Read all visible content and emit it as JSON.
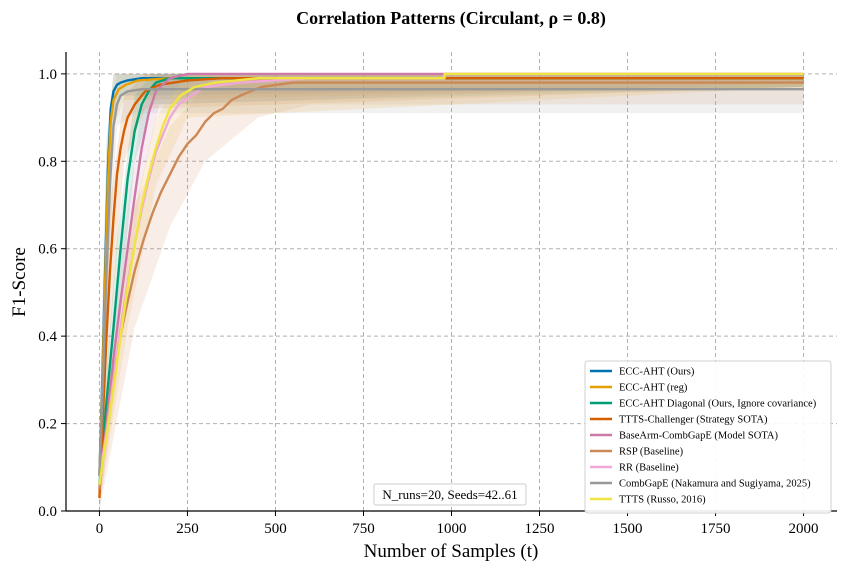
{
  "chart_data": {
    "type": "line",
    "title": "Correlation Patterns (Circulant, ρ = 0.8)",
    "xlabel": "Number of Samples (t)",
    "ylabel": "F1-Score",
    "xlim": [
      -95,
      2095
    ],
    "ylim": [
      0.0,
      1.05
    ],
    "xticks": [
      0,
      250,
      500,
      750,
      1000,
      1250,
      1500,
      1750,
      2000
    ],
    "xtick_labels": [
      "0",
      "250",
      "500",
      "750",
      "1000",
      "1250",
      "1500",
      "1750",
      "2000"
    ],
    "yticks": [
      0.0,
      0.2,
      0.4,
      0.6,
      0.8,
      1.0
    ],
    "ytick_labels": [
      "0.0",
      "0.2",
      "0.4",
      "0.6",
      "0.8",
      "1.0"
    ],
    "grid": true,
    "legend_position": "lower-right",
    "annotation": "N_runs=20, Seeds=42..61",
    "series": [
      {
        "name": "ECC-AHT (Ours)",
        "color": "#0072B2",
        "points": [
          [
            0,
            0.08
          ],
          [
            8,
            0.3
          ],
          [
            16,
            0.55
          ],
          [
            24,
            0.78
          ],
          [
            32,
            0.92
          ],
          [
            40,
            0.96
          ],
          [
            50,
            0.975
          ],
          [
            60,
            0.98
          ],
          [
            80,
            0.985
          ],
          [
            120,
            0.99
          ],
          [
            2000,
            0.99
          ]
        ],
        "band": [
          [
            0,
            0.02,
            0.16
          ],
          [
            20,
            0.45,
            0.85
          ],
          [
            40,
            0.9,
            1.0
          ],
          [
            60,
            0.95,
            1.0
          ],
          [
            2000,
            0.97,
            1.0
          ]
        ]
      },
      {
        "name": "ECC-AHT (reg)",
        "color": "#E69F00",
        "points": [
          [
            0,
            0.08
          ],
          [
            8,
            0.28
          ],
          [
            16,
            0.52
          ],
          [
            24,
            0.75
          ],
          [
            32,
            0.89
          ],
          [
            40,
            0.94
          ],
          [
            55,
            0.965
          ],
          [
            75,
            0.975
          ],
          [
            110,
            0.985
          ],
          [
            200,
            0.99
          ],
          [
            2000,
            0.99
          ]
        ],
        "band": [
          [
            0,
            0.02,
            0.16
          ],
          [
            20,
            0.4,
            0.82
          ],
          [
            40,
            0.88,
            1.0
          ],
          [
            70,
            0.94,
            1.0
          ],
          [
            2000,
            0.97,
            1.0
          ]
        ]
      },
      {
        "name": "ECC-AHT Diagonal (Ours, Ignore covariance)",
        "color": "#009E73",
        "points": [
          [
            0,
            0.06
          ],
          [
            20,
            0.25
          ],
          [
            40,
            0.42
          ],
          [
            60,
            0.6
          ],
          [
            80,
            0.76
          ],
          [
            100,
            0.87
          ],
          [
            120,
            0.93
          ],
          [
            140,
            0.96
          ],
          [
            160,
            0.98
          ],
          [
            200,
            0.99
          ],
          [
            2000,
            0.99
          ]
        ],
        "band": [
          [
            0,
            0.02,
            0.12
          ],
          [
            50,
            0.4,
            0.62
          ],
          [
            100,
            0.8,
            0.95
          ],
          [
            150,
            0.93,
            1.0
          ],
          [
            2000,
            0.97,
            1.0
          ]
        ]
      },
      {
        "name": "TTTS-Challenger (Strategy SOTA)",
        "color": "#D55E00",
        "points": [
          [
            0,
            0.03
          ],
          [
            10,
            0.22
          ],
          [
            20,
            0.4
          ],
          [
            30,
            0.55
          ],
          [
            40,
            0.67
          ],
          [
            50,
            0.77
          ],
          [
            60,
            0.83
          ],
          [
            70,
            0.87
          ],
          [
            80,
            0.9
          ],
          [
            100,
            0.93
          ],
          [
            130,
            0.96
          ],
          [
            170,
            0.975
          ],
          [
            250,
            0.985
          ],
          [
            350,
            0.99
          ],
          [
            2000,
            0.99
          ]
        ],
        "band": [
          [
            0,
            0.0,
            0.1
          ],
          [
            30,
            0.4,
            0.7
          ],
          [
            70,
            0.8,
            0.95
          ],
          [
            130,
            0.92,
            1.0
          ],
          [
            2000,
            0.97,
            1.0
          ]
        ]
      },
      {
        "name": "BaseArm-CombGapE (Model SOTA)",
        "color": "#CC79A7",
        "points": [
          [
            0,
            0.05
          ],
          [
            20,
            0.2
          ],
          [
            40,
            0.35
          ],
          [
            60,
            0.48
          ],
          [
            80,
            0.6
          ],
          [
            100,
            0.72
          ],
          [
            120,
            0.83
          ],
          [
            140,
            0.91
          ],
          [
            160,
            0.96
          ],
          [
            200,
            0.99
          ],
          [
            250,
            1.0
          ],
          [
            2000,
            1.0
          ]
        ],
        "band": [
          [
            0,
            0.0,
            0.1
          ],
          [
            60,
            0.38,
            0.58
          ],
          [
            120,
            0.75,
            0.92
          ],
          [
            170,
            0.93,
            1.0
          ],
          [
            2000,
            0.98,
            1.0
          ]
        ]
      },
      {
        "name": "RSP (Baseline)",
        "color": "#CC8855",
        "points": [
          [
            0,
            0.05
          ],
          [
            25,
            0.22
          ],
          [
            50,
            0.36
          ],
          [
            75,
            0.46
          ],
          [
            100,
            0.55
          ],
          [
            125,
            0.62
          ],
          [
            150,
            0.68
          ],
          [
            175,
            0.73
          ],
          [
            200,
            0.77
          ],
          [
            225,
            0.81
          ],
          [
            250,
            0.84
          ],
          [
            275,
            0.86
          ],
          [
            300,
            0.89
          ],
          [
            325,
            0.91
          ],
          [
            350,
            0.92
          ],
          [
            375,
            0.94
          ],
          [
            400,
            0.95
          ],
          [
            430,
            0.96
          ],
          [
            460,
            0.97
          ],
          [
            550,
            0.98
          ],
          [
            2000,
            0.98
          ]
        ],
        "band": [
          [
            0,
            0.0,
            0.12
          ],
          [
            100,
            0.42,
            0.7
          ],
          [
            200,
            0.65,
            0.88
          ],
          [
            300,
            0.8,
            0.97
          ],
          [
            450,
            0.9,
            1.0
          ],
          [
            600,
            0.93,
            1.0
          ],
          [
            2000,
            0.93,
            1.0
          ]
        ]
      },
      {
        "name": "RR (Baseline)",
        "color": "#F0A8D8",
        "points": [
          [
            0,
            0.08
          ],
          [
            20,
            0.18
          ],
          [
            40,
            0.3
          ],
          [
            60,
            0.42
          ],
          [
            80,
            0.52
          ],
          [
            100,
            0.61
          ],
          [
            120,
            0.69
          ],
          [
            140,
            0.76
          ],
          [
            160,
            0.82
          ],
          [
            180,
            0.86
          ],
          [
            200,
            0.9
          ],
          [
            225,
            0.93
          ],
          [
            260,
            0.95
          ],
          [
            300,
            0.97
          ],
          [
            400,
            0.98
          ],
          [
            600,
            0.99
          ],
          [
            980,
            0.99
          ],
          [
            980,
            1.0
          ],
          [
            2000,
            1.0
          ]
        ],
        "band": [
          [
            0,
            0.02,
            0.14
          ],
          [
            80,
            0.42,
            0.62
          ],
          [
            160,
            0.74,
            0.9
          ],
          [
            250,
            0.9,
            1.0
          ],
          [
            2000,
            0.97,
            1.0
          ]
        ]
      },
      {
        "name": "CombGapE (Nakamura and Sugiyama, 2025)",
        "color": "#999999",
        "points": [
          [
            0,
            0.08
          ],
          [
            10,
            0.3
          ],
          [
            20,
            0.55
          ],
          [
            30,
            0.75
          ],
          [
            40,
            0.88
          ],
          [
            50,
            0.93
          ],
          [
            60,
            0.95
          ],
          [
            80,
            0.96
          ],
          [
            120,
            0.965
          ],
          [
            2000,
            0.965
          ]
        ],
        "band": [
          [
            0,
            0.02,
            0.16
          ],
          [
            25,
            0.55,
            0.85
          ],
          [
            50,
            0.88,
            1.0
          ],
          [
            100,
            0.91,
            1.0
          ],
          [
            2000,
            0.91,
            1.0
          ]
        ]
      },
      {
        "name": "TTTS (Russo, 2016)",
        "color": "#F0E442",
        "points": [
          [
            0,
            0.06
          ],
          [
            20,
            0.17
          ],
          [
            40,
            0.28
          ],
          [
            60,
            0.4
          ],
          [
            80,
            0.51
          ],
          [
            100,
            0.61
          ],
          [
            120,
            0.7
          ],
          [
            140,
            0.77
          ],
          [
            160,
            0.83
          ],
          [
            180,
            0.88
          ],
          [
            200,
            0.92
          ],
          [
            230,
            0.95
          ],
          [
            270,
            0.97
          ],
          [
            330,
            0.98
          ],
          [
            450,
            0.99
          ],
          [
            980,
            0.99
          ],
          [
            980,
            1.0
          ],
          [
            2000,
            1.0
          ]
        ],
        "band": [
          [
            0,
            0.01,
            0.12
          ],
          [
            80,
            0.42,
            0.62
          ],
          [
            160,
            0.75,
            0.9
          ],
          [
            250,
            0.9,
            1.0
          ],
          [
            2000,
            0.97,
            1.0
          ]
        ]
      }
    ]
  }
}
